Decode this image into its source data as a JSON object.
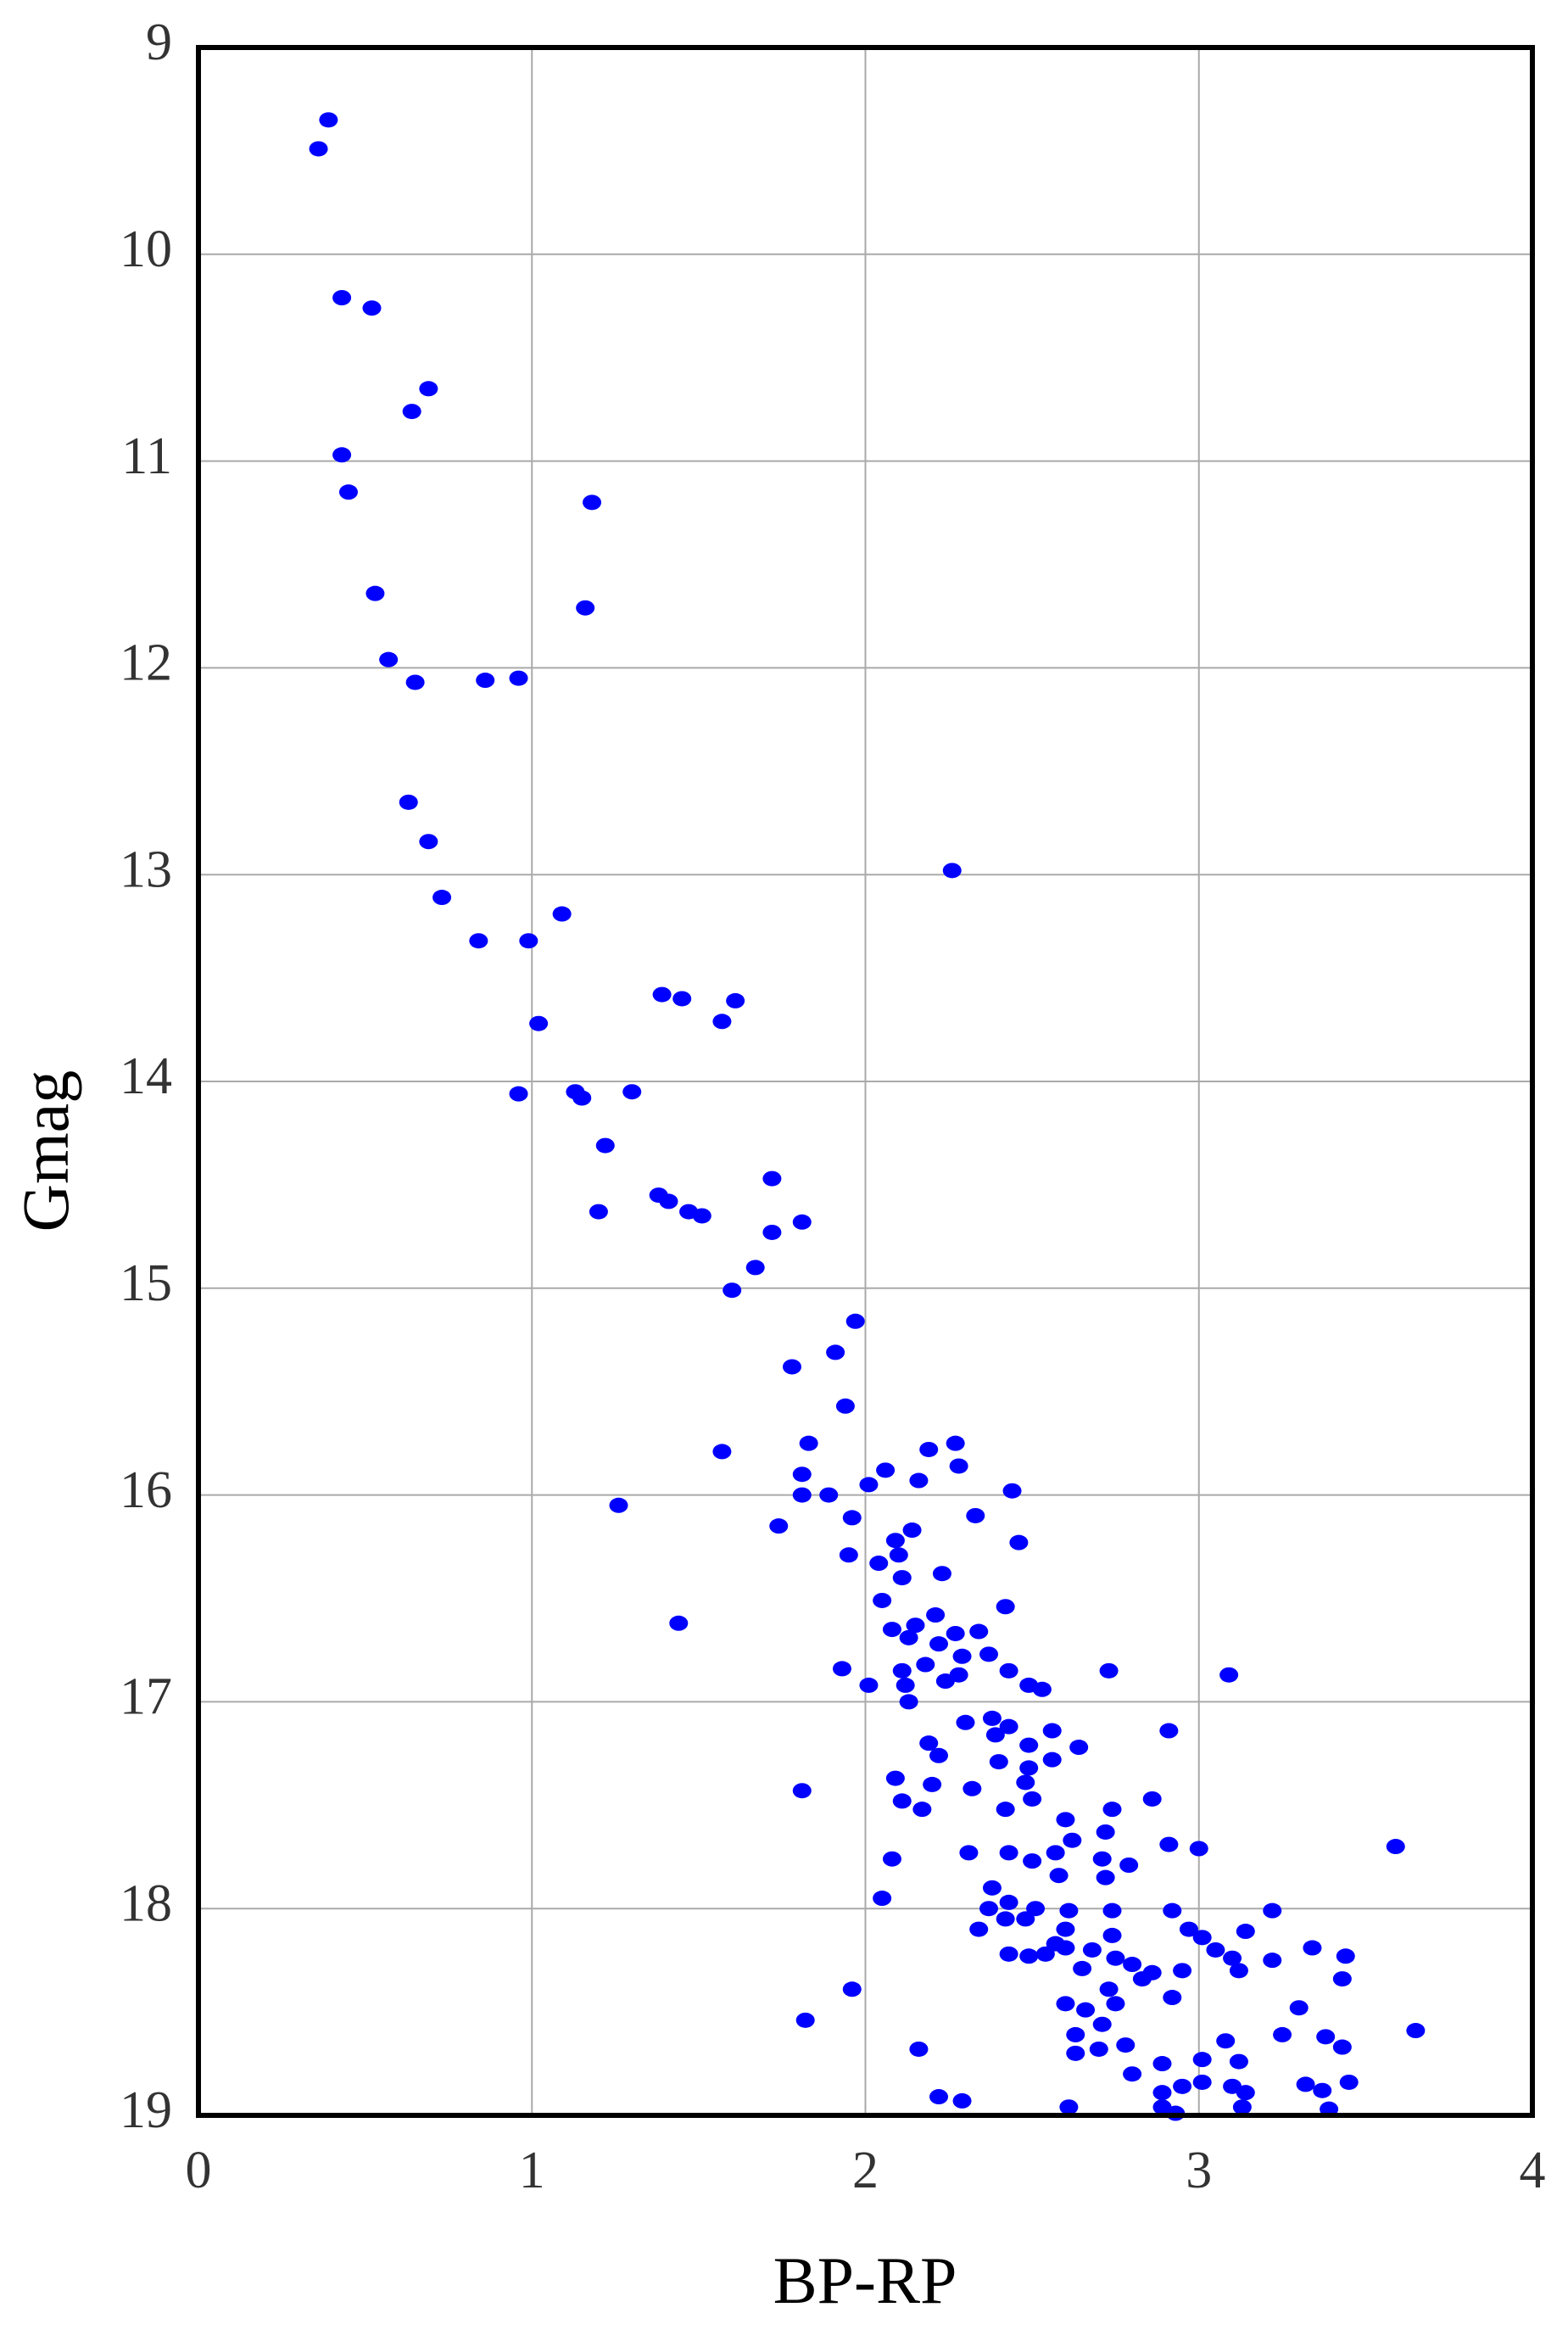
{
  "chart_data": {
    "type": "scatter",
    "xlabel": "BP-RP",
    "ylabel": "Gmag",
    "color": "#0000ff",
    "grid": true,
    "xlim": [
      0,
      4
    ],
    "xticks": [
      0,
      1,
      2,
      3,
      4
    ],
    "ylim": [
      19,
      9
    ],
    "yticks": [
      9,
      10,
      11,
      12,
      13,
      14,
      15,
      16,
      17,
      18,
      19
    ],
    "x": [
      0.39,
      0.36,
      0.43,
      0.52,
      0.69,
      0.64,
      0.43,
      0.45,
      1.18,
      0.53,
      1.16,
      0.57,
      0.65,
      0.86,
      0.96,
      0.63,
      0.69,
      2.26,
      0.73,
      1.09,
      0.84,
      0.99,
      1.39,
      1.45,
      1.61,
      1.57,
      1.02,
      0.96,
      1.13,
      1.15,
      1.3,
      1.22,
      1.72,
      1.38,
      1.41,
      1.47,
      1.51,
      1.2,
      1.81,
      1.72,
      1.67,
      1.6,
      1.97,
      1.91,
      1.78,
      1.94,
      2.27,
      1.83,
      2.19,
      1.57,
      2.28,
      2.06,
      1.81,
      2.16,
      2.01,
      2.44,
      1.81,
      1.89,
      1.26,
      1.96,
      2.33,
      1.74,
      2.14,
      2.09,
      2.1,
      2.46,
      1.95,
      2.04,
      2.11,
      2.23,
      2.05,
      2.42,
      2.21,
      2.15,
      1.44,
      2.08,
      2.13,
      2.27,
      2.34,
      2.22,
      2.37,
      2.29,
      2.18,
      1.93,
      2.11,
      2.73,
      3.09,
      2.43,
      2.28,
      2.24,
      2.12,
      2.01,
      2.49,
      2.53,
      2.13,
      2.38,
      2.3,
      2.43,
      2.39,
      2.56,
      2.91,
      2.49,
      2.64,
      2.19,
      2.56,
      2.22,
      2.4,
      2.49,
      2.09,
      2.32,
      2.2,
      2.48,
      2.86,
      1.81,
      2.11,
      2.5,
      2.42,
      2.17,
      2.74,
      2.6,
      2.72,
      3.59,
      2.91,
      3.0,
      2.31,
      2.08,
      2.62,
      2.43,
      2.57,
      2.71,
      2.5,
      2.79,
      2.58,
      2.38,
      2.72,
      2.05,
      2.43,
      2.37,
      2.51,
      2.61,
      2.74,
      2.92,
      3.22,
      2.48,
      2.42,
      2.6,
      2.97,
      2.34,
      2.74,
      3.14,
      3.01,
      2.57,
      2.6,
      3.34,
      3.05,
      2.43,
      2.49,
      2.54,
      2.68,
      3.44,
      2.75,
      3.1,
      3.22,
      2.8,
      2.65,
      3.12,
      2.95,
      2.86,
      2.83,
      3.43,
      2.73,
      1.96,
      2.92,
      2.6,
      2.75,
      2.66,
      3.3,
      1.82,
      2.71,
      3.65,
      3.25,
      3.38,
      2.63,
      2.78,
      3.08,
      3.43,
      2.16,
      2.7,
      2.63,
      3.01,
      3.12,
      2.89,
      2.8,
      3.01,
      3.45,
      3.32,
      3.1,
      3.37,
      2.95,
      3.14,
      2.89,
      2.22,
      2.29,
      2.89,
      2.61,
      3.13,
      3.39,
      2.93
    ],
    "values": [
      9.35,
      9.49,
      10.21,
      10.26,
      10.65,
      10.76,
      10.97,
      11.15,
      11.2,
      11.64,
      11.71,
      11.96,
      12.07,
      12.06,
      12.05,
      12.65,
      12.84,
      12.98,
      13.11,
      13.19,
      13.32,
      13.32,
      13.58,
      13.6,
      13.61,
      13.71,
      13.72,
      14.06,
      14.05,
      14.08,
      14.05,
      14.31,
      14.47,
      14.55,
      14.58,
      14.63,
      14.65,
      14.63,
      14.68,
      14.73,
      14.9,
      15.01,
      15.16,
      15.31,
      15.38,
      15.57,
      15.75,
      15.75,
      15.78,
      15.79,
      15.86,
      15.88,
      15.9,
      15.93,
      15.95,
      15.98,
      16.0,
      16.0,
      16.05,
      16.11,
      16.1,
      16.15,
      16.17,
      16.22,
      16.29,
      16.23,
      16.29,
      16.33,
      16.4,
      16.38,
      16.51,
      16.54,
      16.58,
      16.63,
      16.62,
      16.65,
      16.69,
      16.67,
      16.66,
      16.72,
      16.77,
      16.78,
      16.82,
      16.84,
      16.85,
      16.85,
      16.87,
      16.85,
      16.87,
      16.9,
      16.92,
      16.92,
      16.92,
      16.94,
      17.0,
      17.08,
      17.1,
      17.12,
      17.16,
      17.14,
      17.14,
      17.21,
      17.22,
      17.2,
      17.28,
      17.26,
      17.29,
      17.32,
      17.37,
      17.42,
      17.4,
      17.39,
      17.47,
      17.43,
      17.48,
      17.47,
      17.52,
      17.52,
      17.52,
      17.57,
      17.63,
      17.7,
      17.69,
      17.71,
      17.73,
      17.76,
      17.67,
      17.73,
      17.73,
      17.76,
      17.77,
      17.79,
      17.84,
      17.9,
      17.85,
      17.95,
      17.97,
      18.0,
      18.0,
      18.01,
      18.01,
      18.01,
      18.01,
      18.05,
      18.05,
      18.1,
      18.1,
      18.1,
      18.13,
      18.11,
      18.14,
      18.17,
      18.19,
      18.19,
      18.2,
      18.22,
      18.23,
      18.22,
      18.2,
      18.23,
      18.24,
      18.24,
      18.25,
      18.27,
      18.29,
      18.3,
      18.3,
      18.31,
      18.34,
      18.34,
      18.39,
      18.39,
      18.43,
      18.46,
      18.46,
      18.49,
      18.48,
      18.54,
      18.56,
      18.59,
      18.61,
      18.62,
      18.61,
      18.66,
      18.64,
      18.67,
      18.68,
      18.68,
      18.7,
      18.73,
      18.74,
      18.75,
      18.8,
      18.84,
      18.84,
      18.85,
      18.86,
      18.88,
      18.86,
      18.89,
      18.89,
      18.91,
      18.93,
      18.96,
      18.96,
      18.96,
      18.97,
      18.99
    ]
  }
}
